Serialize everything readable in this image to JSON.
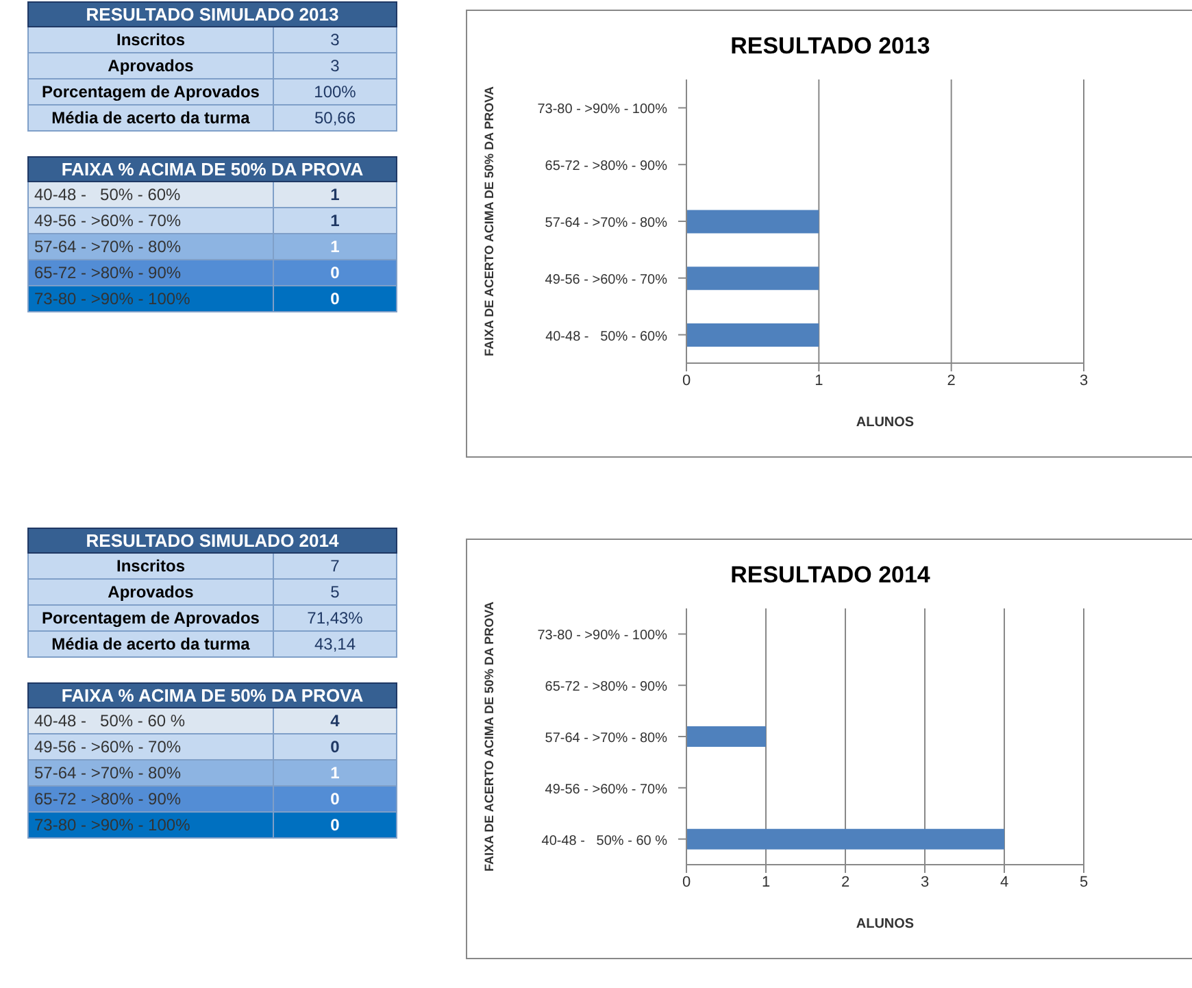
{
  "chart_data": [
    {
      "type": "other",
      "title": "RESULTADO SIMULADO 2013",
      "subtitle": "FAIXA % ACIMA DE 50% DA PROVA",
      "annotations": [
        "Inscritos",
        "3",
        "Aprovados",
        "3",
        "Porcentagem de Aprovados",
        "100%",
        "Média de acerto da turma",
        "50,66"
      ],
      "categories": [
        "40-48 -   50% - 60%",
        "49-56 - >60% - 70%",
        "57-64 - >70% - 80%",
        "65-72 - >80% - 90%",
        "73-80 - >90% - 100%"
      ],
      "values": [
        1,
        1,
        1,
        0,
        0
      ],
      "data_labels": true
    },
    {
      "type": "bar",
      "orientation": "horizontal",
      "title": "RESULTADO 2013",
      "xlabel": "ALUNOS",
      "ylabel": "FAIXA DE ACERTO ACIMA DE 50% DA PROVA",
      "categories": [
        "73-80 - >90% - 100%",
        "65-72 - >80% - 90%",
        "57-64 - >70% - 80%",
        "49-56 - >60% - 70%",
        "40-48 -   50% - 60%"
      ],
      "values": [
        0,
        0,
        1,
        1,
        1
      ],
      "color": "#4f81bd",
      "xlim": [
        0,
        3
      ],
      "xticks": [
        0,
        1,
        2,
        3
      ],
      "grid": "x",
      "legend": false
    },
    {
      "type": "other",
      "title": "RESULTADO SIMULADO 2014",
      "subtitle": "FAIXA % ACIMA DE 50% DA PROVA",
      "annotations": [
        "Inscritos",
        "7",
        "Aprovados",
        "5",
        "Porcentagem de Aprovados",
        "71,43%",
        "Média de acerto da turma",
        "43,14"
      ],
      "categories": [
        "40-48 -   50% - 60 %",
        "49-56 - >60% - 70%",
        "57-64 - >70% - 80%",
        "65-72 - >80% - 90%",
        "73-80 - >90% - 100%"
      ],
      "values": [
        4,
        0,
        1,
        0,
        0
      ],
      "data_labels": true
    },
    {
      "type": "bar",
      "orientation": "horizontal",
      "title": "RESULTADO 2014",
      "xlabel": "ALUNOS",
      "ylabel": "FAIXA DE ACERTO ACIMA DE 50% DA PROVA",
      "categories": [
        "73-80 - >90% - 100%",
        "65-72 - >80% - 90%",
        "57-64 - >70% - 80%",
        "49-56 - >60% - 70%",
        "40-48 -   50% - 60 %"
      ],
      "values": [
        0,
        0,
        1,
        0,
        4
      ],
      "color": "#4f81bd",
      "xlim": [
        0,
        5
      ],
      "xticks": [
        0,
        1,
        2,
        3,
        4,
        5
      ],
      "grid": "x",
      "legend": false
    }
  ]
}
